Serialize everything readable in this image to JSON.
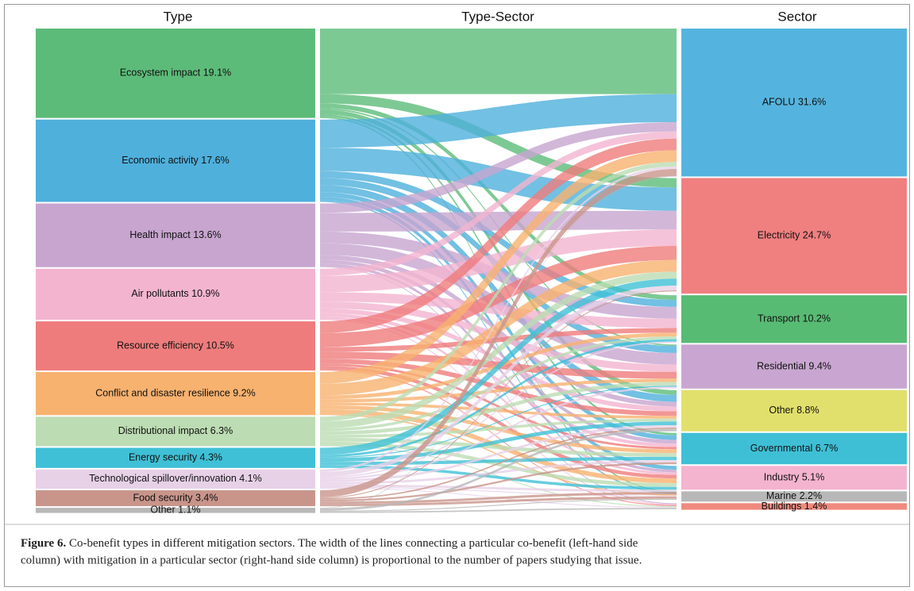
{
  "chart_data": {
    "type": "sankey",
    "headers": [
      "Type",
      "Type-Sector",
      "Sector"
    ],
    "left_nodes": [
      {
        "label": "Ecosystem impact 19.1%",
        "value": 19.1,
        "color": "#5dbb79"
      },
      {
        "label": "Economic activity 17.6%",
        "value": 17.6,
        "color": "#4fb0dc"
      },
      {
        "label": "Health impact 13.6%",
        "value": 13.6,
        "color": "#c7a5cf"
      },
      {
        "label": "Air pollutants 10.9%",
        "value": 10.9,
        "color": "#f3b4d0"
      },
      {
        "label": "Resource efficiency 10.5%",
        "value": 10.5,
        "color": "#ef7c7c"
      },
      {
        "label": "Conflict and disaster resilience 9.2%",
        "value": 9.2,
        "color": "#f7b26f"
      },
      {
        "label": "Distributional impact 6.3%",
        "value": 6.3,
        "color": "#bcdcb3"
      },
      {
        "label": "Energy security 4.3%",
        "value": 4.3,
        "color": "#3fc0d6"
      },
      {
        "label": "Technological spillover/innovation 4.1%",
        "value": 4.1,
        "color": "#e7d1e7"
      },
      {
        "label": "Food security 3.4%",
        "value": 3.4,
        "color": "#c9958b"
      },
      {
        "label": "Other 1.1%",
        "value": 1.1,
        "color": "#b8b8b8"
      }
    ],
    "right_nodes": [
      {
        "label": "AFOLU 31.6%",
        "value": 31.6,
        "color": "#55b4df"
      },
      {
        "label": "Electricity 24.7%",
        "value": 24.7,
        "color": "#f07f80"
      },
      {
        "label": "Transport 10.2%",
        "value": 10.2,
        "color": "#58bb74"
      },
      {
        "label": "Residential 9.4%",
        "value": 9.4,
        "color": "#c9a6d1"
      },
      {
        "label": "Other 8.8%",
        "value": 8.8,
        "color": "#e2e06c"
      },
      {
        "label": "Governmental 6.7%",
        "value": 6.7,
        "color": "#3fbfd5"
      },
      {
        "label": "Industry 5.1%",
        "value": 5.1,
        "color": "#f4b3cf"
      },
      {
        "label": "Marine 2.2%",
        "value": 2.2,
        "color": "#b8b8b8"
      },
      {
        "label": "Buildings 1.4%",
        "value": 1.4,
        "color": "#ef8a7e"
      }
    ],
    "flows": [
      {
        "source": 0,
        "target": 0,
        "value": 14
      },
      {
        "source": 0,
        "target": 1,
        "value": 2
      },
      {
        "source": 0,
        "target": 2,
        "value": 1
      },
      {
        "source": 0,
        "target": 3,
        "value": 0.3
      },
      {
        "source": 0,
        "target": 4,
        "value": 1.0
      },
      {
        "source": 0,
        "target": 5,
        "value": 0.5
      },
      {
        "source": 0,
        "target": 7,
        "value": 0.3
      },
      {
        "source": 1,
        "target": 0,
        "value": 6
      },
      {
        "source": 1,
        "target": 1,
        "value": 5
      },
      {
        "source": 1,
        "target": 2,
        "value": 1.5
      },
      {
        "source": 1,
        "target": 3,
        "value": 1.5
      },
      {
        "source": 1,
        "target": 4,
        "value": 1.5
      },
      {
        "source": 1,
        "target": 5,
        "value": 1
      },
      {
        "source": 1,
        "target": 6,
        "value": 0.8
      },
      {
        "source": 1,
        "target": 7,
        "value": 0.3
      },
      {
        "source": 2,
        "target": 0,
        "value": 2
      },
      {
        "source": 2,
        "target": 1,
        "value": 4
      },
      {
        "source": 2,
        "target": 2,
        "value": 2.5
      },
      {
        "source": 2,
        "target": 3,
        "value": 2.5
      },
      {
        "source": 2,
        "target": 4,
        "value": 1
      },
      {
        "source": 2,
        "target": 5,
        "value": 0.8
      },
      {
        "source": 2,
        "target": 6,
        "value": 0.6
      },
      {
        "source": 2,
        "target": 8,
        "value": 0.2
      },
      {
        "source": 3,
        "target": 0,
        "value": 1.5
      },
      {
        "source": 3,
        "target": 1,
        "value": 3.5
      },
      {
        "source": 3,
        "target": 2,
        "value": 2
      },
      {
        "source": 3,
        "target": 3,
        "value": 1.5
      },
      {
        "source": 3,
        "target": 4,
        "value": 1
      },
      {
        "source": 3,
        "target": 5,
        "value": 0.7
      },
      {
        "source": 3,
        "target": 6,
        "value": 0.5
      },
      {
        "source": 3,
        "target": 8,
        "value": 0.2
      },
      {
        "source": 4,
        "target": 0,
        "value": 2.5
      },
      {
        "source": 4,
        "target": 1,
        "value": 3
      },
      {
        "source": 4,
        "target": 2,
        "value": 1
      },
      {
        "source": 4,
        "target": 3,
        "value": 1.5
      },
      {
        "source": 4,
        "target": 4,
        "value": 1
      },
      {
        "source": 4,
        "target": 5,
        "value": 0.5
      },
      {
        "source": 4,
        "target": 6,
        "value": 0.8
      },
      {
        "source": 4,
        "target": 8,
        "value": 0.2
      },
      {
        "source": 5,
        "target": 0,
        "value": 2.5
      },
      {
        "source": 5,
        "target": 1,
        "value": 2.5
      },
      {
        "source": 5,
        "target": 2,
        "value": 0.8
      },
      {
        "source": 5,
        "target": 3,
        "value": 0.7
      },
      {
        "source": 5,
        "target": 4,
        "value": 0.6
      },
      {
        "source": 5,
        "target": 5,
        "value": 0.8
      },
      {
        "source": 5,
        "target": 6,
        "value": 1.0
      },
      {
        "source": 5,
        "target": 7,
        "value": 0.3
      },
      {
        "source": 6,
        "target": 0,
        "value": 1
      },
      {
        "source": 6,
        "target": 1,
        "value": 1.5
      },
      {
        "source": 6,
        "target": 2,
        "value": 0.6
      },
      {
        "source": 6,
        "target": 3,
        "value": 0.8
      },
      {
        "source": 6,
        "target": 4,
        "value": 0.6
      },
      {
        "source": 6,
        "target": 5,
        "value": 0.8
      },
      {
        "source": 6,
        "target": 6,
        "value": 0.8
      },
      {
        "source": 6,
        "target": 8,
        "value": 0.2
      },
      {
        "source": 7,
        "target": 1,
        "value": 1.5
      },
      {
        "source": 7,
        "target": 2,
        "value": 0.5
      },
      {
        "source": 7,
        "target": 3,
        "value": 0.2
      },
      {
        "source": 7,
        "target": 4,
        "value": 0.8
      },
      {
        "source": 7,
        "target": 5,
        "value": 0.7
      },
      {
        "source": 7,
        "target": 6,
        "value": 0.6
      },
      {
        "source": 8,
        "target": 0,
        "value": 0.5
      },
      {
        "source": 8,
        "target": 1,
        "value": 1
      },
      {
        "source": 8,
        "target": 2,
        "value": 0.3
      },
      {
        "source": 8,
        "target": 3,
        "value": 0.4
      },
      {
        "source": 8,
        "target": 4,
        "value": 0.5
      },
      {
        "source": 8,
        "target": 5,
        "value": 0.5
      },
      {
        "source": 8,
        "target": 6,
        "value": 0.5
      },
      {
        "source": 8,
        "target": 7,
        "value": 0.2
      },
      {
        "source": 8,
        "target": 8,
        "value": 0.2
      },
      {
        "source": 9,
        "target": 0,
        "value": 1.5
      },
      {
        "source": 9,
        "target": 1,
        "value": 0.2
      },
      {
        "source": 9,
        "target": 4,
        "value": 0.3
      },
      {
        "source": 9,
        "target": 5,
        "value": 0.4
      },
      {
        "source": 9,
        "target": 6,
        "value": 0.5
      },
      {
        "source": 9,
        "target": 7,
        "value": 0.5
      },
      {
        "source": 10,
        "target": 0,
        "value": 0.1
      },
      {
        "source": 10,
        "target": 4,
        "value": 0.5
      },
      {
        "source": 10,
        "target": 7,
        "value": 0.2
      },
      {
        "source": 10,
        "target": 8,
        "value": 0.3
      }
    ]
  },
  "caption": {
    "label": "Figure 6.",
    "line1": "Co-benefit types in different mitigation sectors. The width of the lines connecting a particular co-benefit (left-hand side",
    "line2": "column) with mitigation in a particular sector (right-hand side column) is proportional to the number of papers studying that issue."
  }
}
